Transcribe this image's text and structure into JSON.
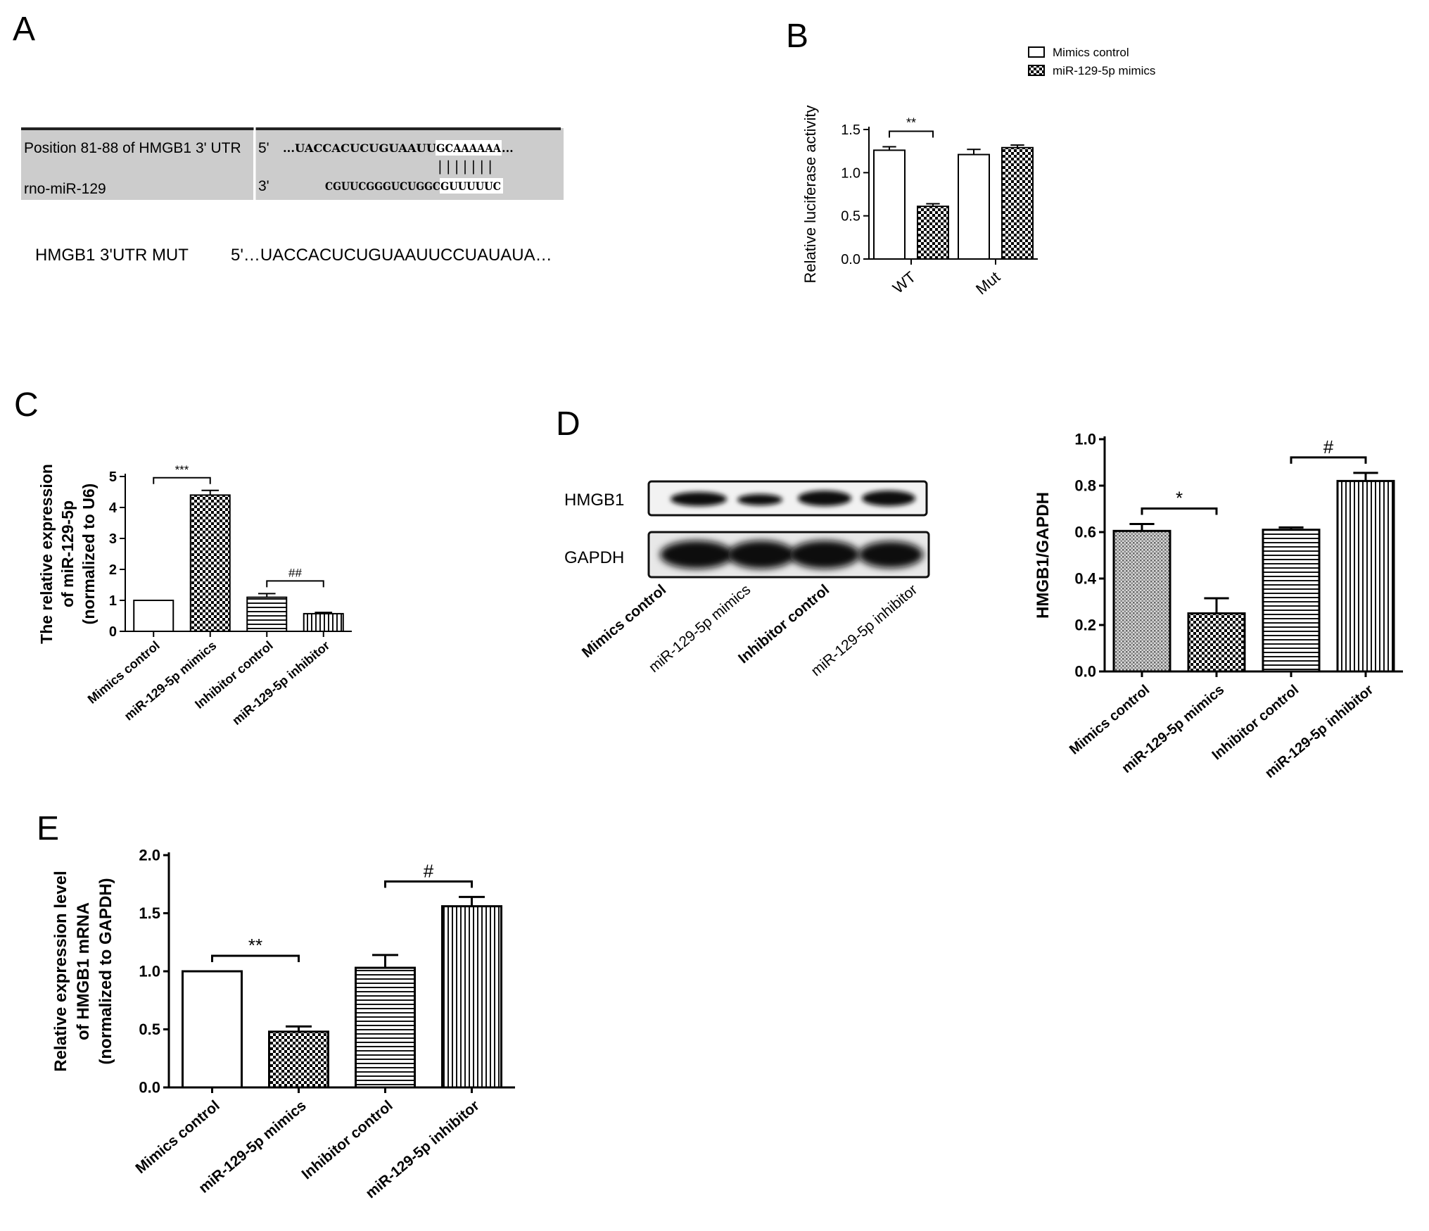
{
  "panels": {
    "A": {
      "letter": "A",
      "row1_label": "Position 81-88 of HMGB1 3' UTR",
      "row1_end": "5'",
      "row1_seq_pre": "...UACCACUCUGUAAUU",
      "row1_seq_site": "GCAAAAAA",
      "row1_seq_post": "...",
      "pairing": "|||||||",
      "row2_label": "rno-miR-129",
      "row2_end": "3'",
      "row2_seq_pre": "CGUUCGGGUCUGGC",
      "row2_seq_site": "GUUUUUC",
      "mut_label": "HMGB1 3'UTR MUT",
      "mut_seq": "5'…UACCACUCUGUAAUUCCUAUAUA…"
    },
    "B": {
      "letter": "B"
    },
    "C": {
      "letter": "C"
    },
    "D": {
      "letter": "D",
      "blot_labels": [
        "HMGB1",
        "GAPDH"
      ],
      "lane_labels": [
        "Mimics control",
        "miR-129-5p mimics",
        "Inhibitor control",
        "miR-129-5p inhibitor"
      ]
    },
    "E": {
      "letter": "E"
    }
  },
  "colors": {
    "bar_fill": "#ffffff",
    "bar_stroke": "#000000",
    "sequence_box": "#cccccc"
  },
  "chart_data": [
    {
      "id": "B",
      "type": "bar",
      "categories": [
        "WT",
        "Mut"
      ],
      "series": [
        {
          "name": "Mimics control",
          "pattern": "none",
          "values": [
            1.26,
            1.21
          ],
          "errors": [
            0.04,
            0.06
          ]
        },
        {
          "name": "miR-129-5p mimics",
          "pattern": "checker",
          "values": [
            0.61,
            1.29
          ],
          "errors": [
            0.03,
            0.03
          ]
        }
      ],
      "ylabel": "Relative luciferase activity",
      "ylim": [
        0,
        1.5
      ],
      "yticks": [
        "0.0",
        "0.5",
        "1.0",
        "1.5"
      ],
      "legend": "top-right",
      "annotations": [
        {
          "text": "**",
          "between": [
            0,
            1
          ],
          "category": 0
        }
      ]
    },
    {
      "id": "C",
      "type": "bar",
      "categories": [
        "Mimics control",
        "miR-129-5p mimics",
        "Inhibitor control",
        "miR-129-5p inhibitor"
      ],
      "patterns": [
        "none",
        "checker",
        "hlines",
        "vlines"
      ],
      "values": [
        1.0,
        4.4,
        1.1,
        0.57
      ],
      "errors": [
        0,
        0.15,
        0.12,
        0.04
      ],
      "ylabel": [
        "The relative expression",
        "of miR-129-5p",
        "(normalized to U6)"
      ],
      "ylim": [
        0,
        5
      ],
      "yticks": [
        "0",
        "1",
        "2",
        "3",
        "4",
        "5"
      ],
      "annotations": [
        {
          "text": "***",
          "between": [
            0,
            1
          ]
        },
        {
          "text": "##",
          "between": [
            2,
            3
          ]
        }
      ]
    },
    {
      "id": "D",
      "type": "bar",
      "categories": [
        "Mimics control",
        "miR-129-5p mimics",
        "Inhibitor control",
        "miR-129-5p inhibitor"
      ],
      "patterns": [
        "dots",
        "checker",
        "hlines",
        "vlines"
      ],
      "values": [
        0.605,
        0.25,
        0.61,
        0.82
      ],
      "errors": [
        0.03,
        0.065,
        0.01,
        0.035
      ],
      "ylabel": "HMGB1/GAPDH",
      "ylim": [
        0,
        1.0
      ],
      "yticks": [
        "0.0",
        "0.2",
        "0.4",
        "0.6",
        "0.8",
        "1.0"
      ],
      "annotations": [
        {
          "text": "*",
          "between": [
            0,
            1
          ]
        },
        {
          "text": "#",
          "between": [
            2,
            3
          ]
        }
      ]
    },
    {
      "id": "E",
      "type": "bar",
      "categories": [
        "Mimics control",
        "miR-129-5p mimics",
        "Inhibitor control",
        "miR-129-5p inhibitor"
      ],
      "patterns": [
        "none",
        "checker",
        "hlines",
        "vlines"
      ],
      "values": [
        1.0,
        0.48,
        1.03,
        1.56
      ],
      "errors": [
        0,
        0.045,
        0.11,
        0.08
      ],
      "ylabel": [
        "Relative expression level",
        "of HMGB1 mRNA",
        "(normalized to GAPDH)"
      ],
      "ylim": [
        0,
        2.0
      ],
      "yticks": [
        "0.0",
        "0.5",
        "1.0",
        "1.5",
        "2.0"
      ],
      "annotations": [
        {
          "text": "**",
          "between": [
            0,
            1
          ]
        },
        {
          "text": "#",
          "between": [
            2,
            3
          ]
        }
      ]
    }
  ]
}
